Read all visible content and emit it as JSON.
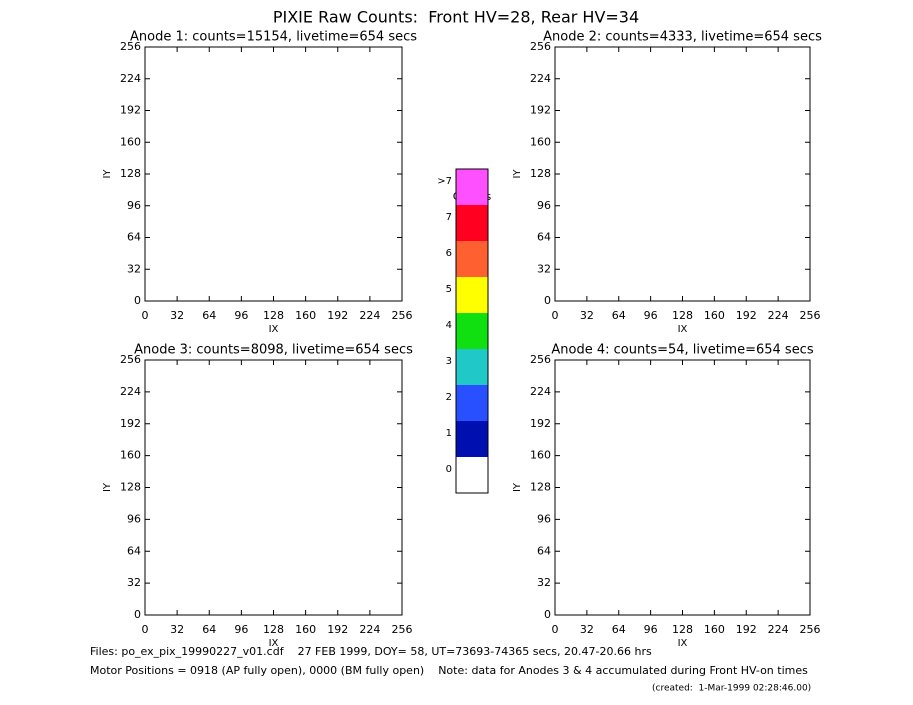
{
  "title": "PIXIE Raw Counts:  Front HV=28, Rear HV=34",
  "chart_data": [
    {
      "type": "scatter",
      "title": "Anode 1: counts=15154, livetime=654 secs",
      "xlabel": "IX",
      "ylabel": "IY",
      "xlim": [
        0,
        256
      ],
      "ylim": [
        0,
        256
      ],
      "xticks": [
        0,
        32,
        64,
        96,
        128,
        160,
        192,
        224,
        256
      ],
      "yticks": [
        0,
        32,
        64,
        96,
        128,
        160,
        192,
        224,
        256
      ]
    },
    {
      "type": "scatter",
      "title": "Anode 2: counts=4333, livetime=654 secs",
      "xlabel": "IX",
      "ylabel": "IY",
      "xlim": [
        0,
        256
      ],
      "ylim": [
        0,
        256
      ],
      "xticks": [
        0,
        32,
        64,
        96,
        128,
        160,
        192,
        224,
        256
      ],
      "yticks": [
        0,
        32,
        64,
        96,
        128,
        160,
        192,
        224,
        256
      ]
    },
    {
      "type": "scatter",
      "title": "Anode 3: counts=8098, livetime=654 secs",
      "xlabel": "IX",
      "ylabel": "IY",
      "xlim": [
        0,
        256
      ],
      "ylim": [
        0,
        256
      ],
      "xticks": [
        0,
        32,
        64,
        96,
        128,
        160,
        192,
        224,
        256
      ],
      "yticks": [
        0,
        32,
        64,
        96,
        128,
        160,
        192,
        224,
        256
      ]
    },
    {
      "type": "scatter",
      "title": "Anode 4: counts=54, livetime=654 secs",
      "xlabel": "IX",
      "ylabel": "IY",
      "xlim": [
        0,
        256
      ],
      "ylim": [
        0,
        256
      ],
      "xticks": [
        0,
        32,
        64,
        96,
        128,
        160,
        192,
        224,
        256
      ],
      "yticks": [
        0,
        32,
        64,
        96,
        128,
        160,
        192,
        224,
        256
      ]
    }
  ],
  "colorbar": {
    "title": "Counts",
    "labels": [
      "0",
      "1",
      "2",
      "3",
      "4",
      "5",
      "6",
      "7",
      ">7"
    ],
    "colors": [
      "#ffffff",
      "#0010b0",
      "#2850ff",
      "#20c8c8",
      "#10e010",
      "#ffff00",
      "#ff6030",
      "#ff0020",
      "#ff50ff"
    ]
  },
  "footer": {
    "files": "Files: po_ex_pix_19990227_v01.cdf    27 FEB 1999, DOY= 58, UT=73693-74365 secs, 20.47-20.66 hrs",
    "motor": "Motor Positions = 0918 (AP fully open), 0000 (BM fully open)    Note: data for Anodes 3 & 4 accumulated during Front HV-on times",
    "created": "(created:  1-Mar-1999 02:28:46.00)"
  }
}
